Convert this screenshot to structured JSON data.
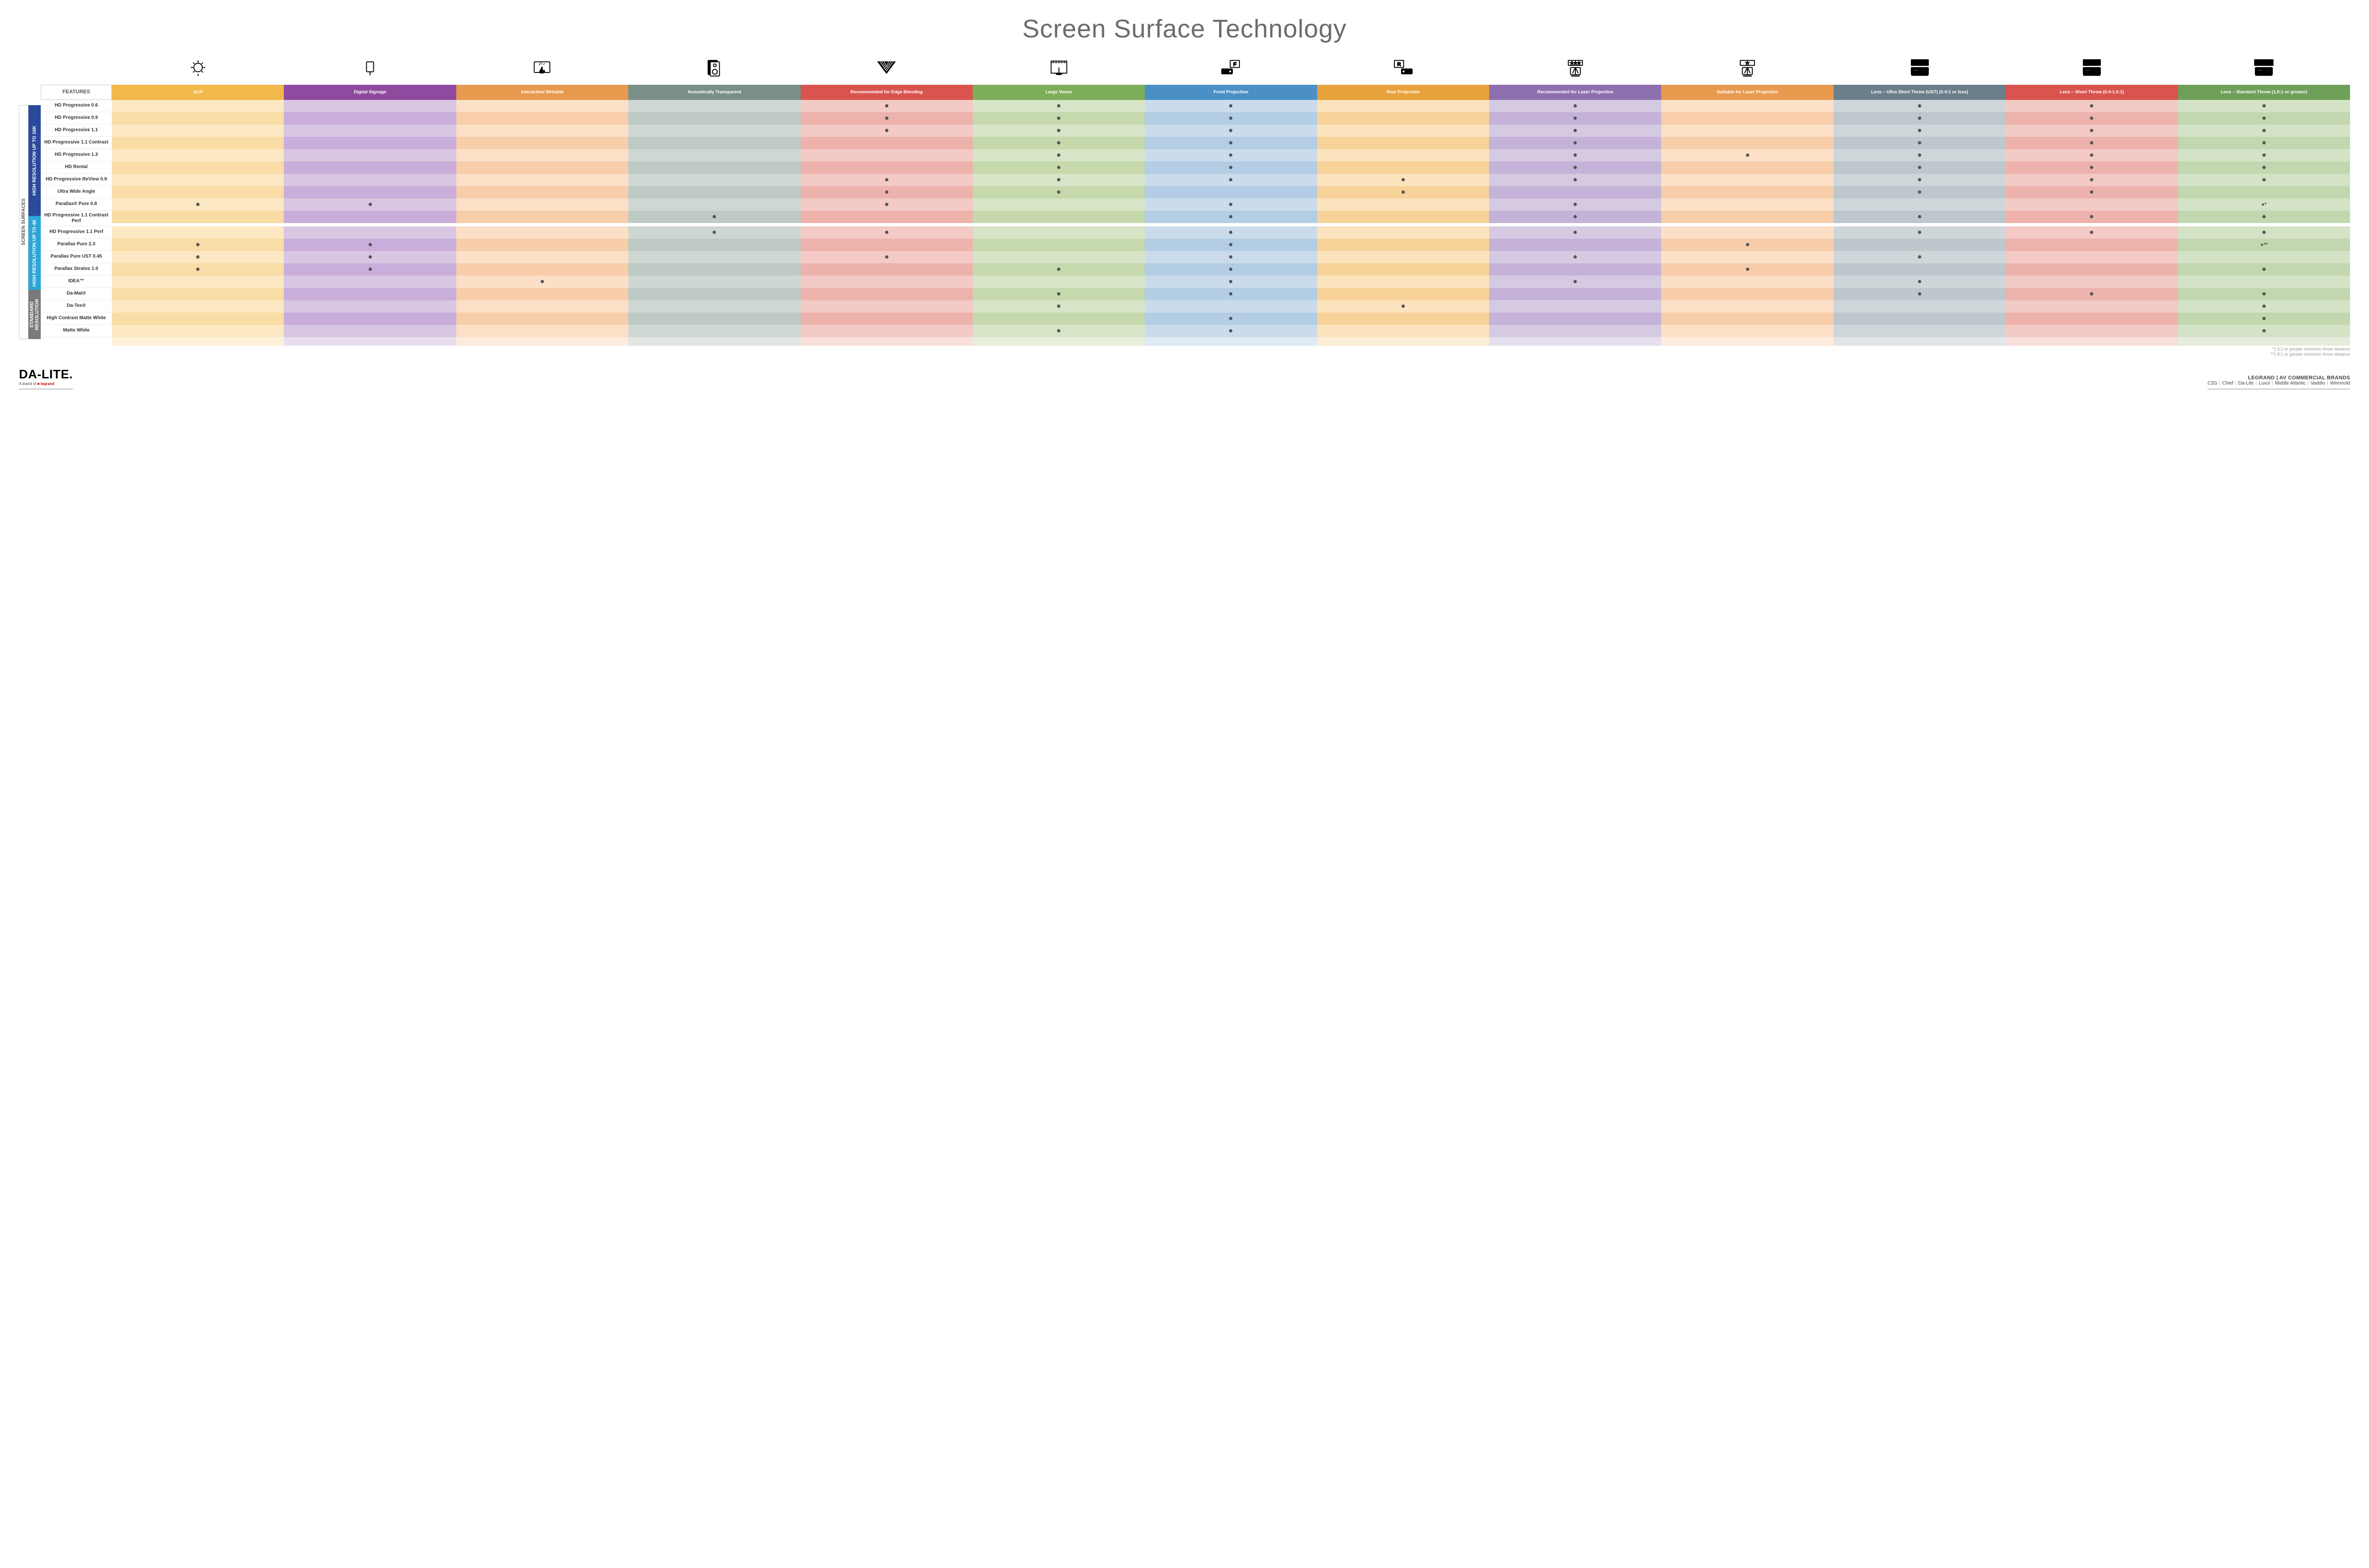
{
  "title": "Screen Surface Technology",
  "features_label": "FEATURES",
  "columns": [
    {
      "key": "alr",
      "label": "ALR",
      "color": "#f2b84b"
    },
    {
      "key": "signage",
      "label": "Digital Signage",
      "color": "#8e4a9e"
    },
    {
      "key": "interactive",
      "label": "Interactive/ Writable",
      "color": "#e89a4f"
    },
    {
      "key": "acoustic",
      "label": "Acoustically Transparent",
      "color": "#7a8f87"
    },
    {
      "key": "edge",
      "label": "Recommended for Edge Blending",
      "color": "#d9534f"
    },
    {
      "key": "large",
      "label": "Large Venue",
      "color": "#7fae5a"
    },
    {
      "key": "front",
      "label": "Front Projection",
      "color": "#4a90c7"
    },
    {
      "key": "rear",
      "label": "Rear Projection",
      "color": "#e8a23c"
    },
    {
      "key": "rec_laser",
      "label": "Recommended for Laser Projection",
      "color": "#8e6fae"
    },
    {
      "key": "suit_laser",
      "label": "Suitable for Laser Projection",
      "color": "#e89a4f"
    },
    {
      "key": "ust",
      "label": "Lens – Ultra Short Throw (UST) (0.4:1 or less)",
      "color": "#6b7f8a"
    },
    {
      "key": "short",
      "label": "Lens – Short Throw (0.4-1.0:1)",
      "color": "#d9534f"
    },
    {
      "key": "std",
      "label": "Lens – Standard Throw (1.0:1 or greater)",
      "color": "#6fa05a"
    }
  ],
  "cell_tints": {
    "alr": [
      "#fce8c2",
      "#f9dca6"
    ],
    "signage": [
      "#d9c6e2",
      "#c9adda"
    ],
    "interactive": [
      "#fbe0c7",
      "#f7cdaa"
    ],
    "acoustic": [
      "#cfd7d2",
      "#bfcac4"
    ],
    "edge": [
      "#f3cac5",
      "#ecb2ab"
    ],
    "large": [
      "#d7e4c5",
      "#c6d9ad"
    ],
    "front": [
      "#cadcec",
      "#b3cde4"
    ],
    "rear": [
      "#fbe3bd",
      "#f7d39a"
    ],
    "rec_laser": [
      "#d6cae3",
      "#c4b2d8"
    ],
    "suit_laser": [
      "#fbe0c7",
      "#f7cdaa"
    ],
    "ust": [
      "#cfd6da",
      "#bdc7cc"
    ],
    "short": [
      "#f3cac5",
      "#ecb2ab"
    ],
    "std": [
      "#d4e3c6",
      "#c2d7af"
    ]
  },
  "side_outer": "SCREEN SURFACES",
  "groups": [
    {
      "key": "g1",
      "label": "HIGH RESOLUTION UP TO 16K",
      "color": "#2a4b9b",
      "rows": [
        {
          "label": "HD Progressive 0.6",
          "dots": [
            "edge",
            "large",
            "front",
            "rec_laser",
            "ust",
            "short",
            "std"
          ]
        },
        {
          "label": "HD Progressive 0.9",
          "dots": [
            "edge",
            "large",
            "front",
            "rec_laser",
            "ust",
            "short",
            "std"
          ]
        },
        {
          "label": "HD Progressive 1.1",
          "dots": [
            "edge",
            "large",
            "front",
            "rec_laser",
            "ust",
            "short",
            "std"
          ]
        },
        {
          "label": "HD Progressive 1.1 Contrast",
          "dots": [
            "large",
            "front",
            "rec_laser",
            "ust",
            "short",
            "std"
          ]
        },
        {
          "label": "HD Progressive 1.3",
          "dots": [
            "large",
            "front",
            "rec_laser",
            "suit_laser",
            "ust",
            "short",
            "std"
          ]
        },
        {
          "label": "HD Rental",
          "dots": [
            "large",
            "front",
            "rec_laser",
            "ust",
            "short",
            "std"
          ]
        },
        {
          "label": "HD Progressive ReView 0.9",
          "dots": [
            "edge",
            "large",
            "front",
            "rear",
            "rec_laser",
            "ust",
            "short",
            "std"
          ]
        },
        {
          "label": "Ultra Wide Angle",
          "dots": [
            "edge",
            "large",
            "rear",
            "ust",
            "short"
          ]
        },
        {
          "label": "Parallax® Pure 0.8",
          "dots": [
            "alr",
            "signage",
            "edge",
            "front",
            "rec_laser"
          ],
          "std_note": "●*"
        }
      ]
    },
    {
      "key": "g2",
      "label": "HIGH RESOLUTION UP TO 4K",
      "color": "#2aa7d6",
      "rows": [
        {
          "label": "HD Progressive 1.1 Contrast Perf",
          "dots": [
            "acoustic",
            "front",
            "rec_laser",
            "ust",
            "short",
            "std"
          ]
        },
        {
          "label": "HD Progressive 1.1 Perf",
          "dots": [
            "acoustic",
            "edge",
            "front",
            "rec_laser",
            "ust",
            "short",
            "std"
          ]
        },
        {
          "label": "Parallax Pure 2.3",
          "dots": [
            "alr",
            "signage",
            "front",
            "suit_laser"
          ],
          "std_note": "●**"
        },
        {
          "label": "Parallax Pure UST 0.45",
          "dots": [
            "alr",
            "signage",
            "edge",
            "front",
            "rec_laser",
            "ust"
          ]
        },
        {
          "label": "Parallax Stratos 1.0",
          "dots": [
            "alr",
            "signage",
            "large",
            "front",
            "suit_laser",
            "std"
          ]
        },
        {
          "label": "IDEA™",
          "dots": [
            "interactive",
            "front",
            "rec_laser",
            "ust"
          ]
        }
      ]
    },
    {
      "key": "g3",
      "label": "STANDARD RESOLUTION",
      "color": "#7a7a7a",
      "rows": [
        {
          "label": "Da-Mat®",
          "dots": [
            "large",
            "front",
            "ust",
            "short",
            "std"
          ]
        },
        {
          "label": "Da-Tex®",
          "dots": [
            "large",
            "rear",
            "std"
          ]
        },
        {
          "label": "High Contrast Matte White",
          "dots": [
            "front",
            "std"
          ]
        },
        {
          "label": "Matte White",
          "dots": [
            "large",
            "front",
            "std"
          ]
        }
      ]
    }
  ],
  "footnotes": [
    "*1.5:1 or greater minimum throw distance",
    "**1.8:1 or greater minimum throw distance"
  ],
  "footer": {
    "logo_main": "DA-LITE.",
    "logo_sub_pre": "A brand of ",
    "logo_sub_brand": "legrand",
    "right_top": "LEGRAND | AV COMMERCIAL BRANDS",
    "brands": [
      "C2G",
      "Chief",
      "Da-Lite",
      "Luxul",
      "Middle Atlantic",
      "Vaddio",
      "Wiremold"
    ]
  },
  "icons": {
    "alr": "bulb",
    "signage": "signage",
    "interactive": "touch",
    "acoustic": "speaker",
    "edge": "wedge",
    "large": "stage",
    "front": "proj-f",
    "rear": "proj-r",
    "rec_laser": "laser3",
    "suit_laser": "laser1",
    "ust": "proj-ust",
    "short": "proj-short",
    "std": "proj-std"
  }
}
